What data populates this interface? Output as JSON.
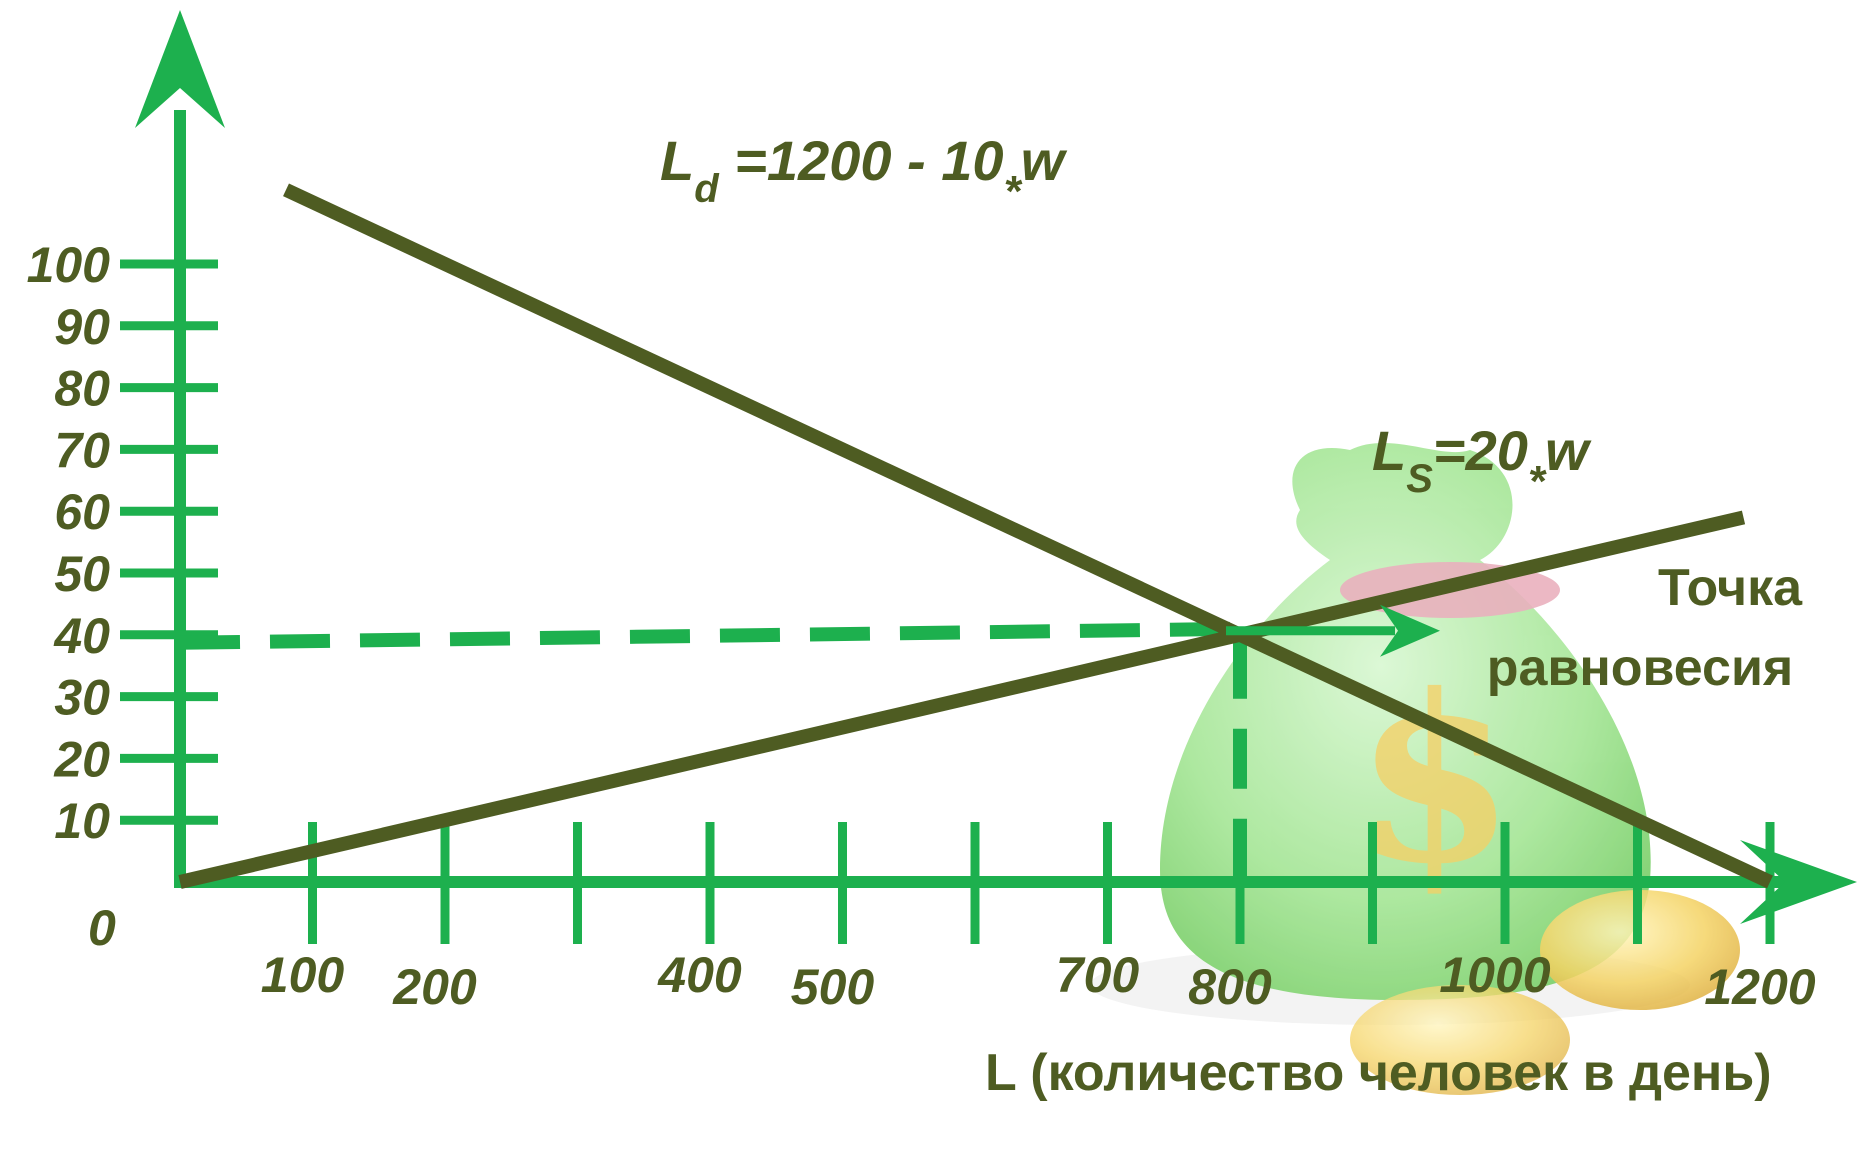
{
  "chart_data": {
    "type": "line",
    "xlabel": "L (количество человек в день)",
    "ylabel": "",
    "xlim": [
      0,
      1200
    ],
    "ylim": [
      0,
      100
    ],
    "origin_label": "0",
    "x_ticks": [
      100,
      200,
      300,
      400,
      500,
      600,
      700,
      800,
      900,
      1000,
      1100,
      1200
    ],
    "x_tick_labels": [
      {
        "x": 100,
        "label": "100"
      },
      {
        "x": 200,
        "label": "200"
      },
      {
        "x": 400,
        "label": "400"
      },
      {
        "x": 500,
        "label": "500"
      },
      {
        "x": 700,
        "label": "700"
      },
      {
        "x": 800,
        "label": "800"
      },
      {
        "x": 1000,
        "label": "1000"
      },
      {
        "x": 1200,
        "label": "1200"
      }
    ],
    "y_ticks": [
      10,
      20,
      30,
      40,
      50,
      60,
      70,
      80,
      90,
      100
    ],
    "y_tick_labels": [
      "10",
      "20",
      "30",
      "40",
      "50",
      "60",
      "70",
      "80",
      "90",
      "100"
    ],
    "series": [
      {
        "name": "Ld",
        "equation": {
          "main": "L",
          "sub": "d",
          "mid": " =1200 - 10",
          "op": "*",
          "end": "w"
        },
        "color": "#4e5c22",
        "x": [
          0,
          1200
        ],
        "y": [
          120,
          0
        ]
      },
      {
        "name": "Ls",
        "equation": {
          "main": "L",
          "sub": "S",
          "mid": "=20",
          "op": "*",
          "end": "w"
        },
        "color": "#4e5c22",
        "x": [
          0,
          1200
        ],
        "y": [
          0,
          60
        ]
      }
    ],
    "equilibrium": {
      "x": 800,
      "y": 40,
      "label_line1": "Точка",
      "label_line2": "равновесия"
    },
    "axis_color": "#1db04e",
    "curve_color": "#4e5c22",
    "grid": false
  }
}
